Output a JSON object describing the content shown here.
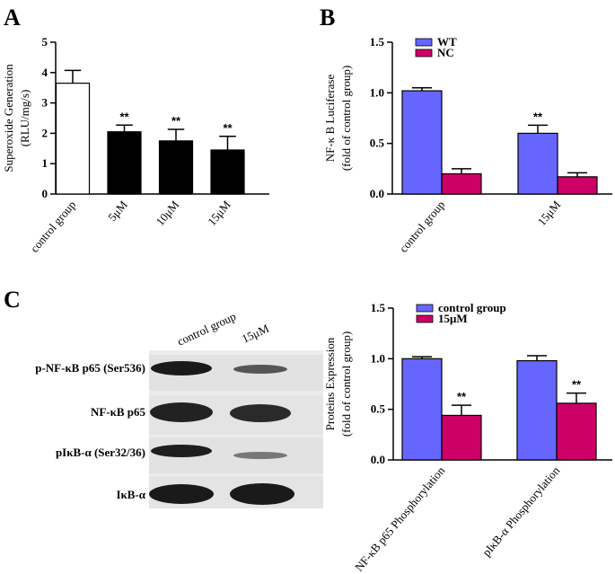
{
  "chart_data": [
    {
      "type": "bar",
      "panel": "A",
      "ylabel": [
        "Superoxide Generation",
        "(RLU/mg/s)"
      ],
      "categories": [
        "control group",
        "5μM",
        "10μM",
        "15μM"
      ],
      "values": [
        3.65,
        2.05,
        1.75,
        1.45
      ],
      "errors": [
        0.42,
        0.22,
        0.38,
        0.45
      ],
      "colors": [
        "#ffffff",
        "#000000",
        "#000000",
        "#000000"
      ],
      "annotations": [
        null,
        "**",
        "**",
        "**"
      ],
      "ylim": [
        0,
        5
      ],
      "yticks": [
        0,
        1,
        2,
        3,
        4,
        5
      ]
    },
    {
      "type": "bar",
      "panel": "B",
      "ylabel": [
        "NF-κ B Luciferase",
        "(fold of control group)"
      ],
      "categories": [
        "control group",
        "15μM"
      ],
      "series": [
        {
          "name": "WT",
          "color": "#6666ff",
          "values": [
            1.02,
            0.6
          ],
          "errors": [
            0.03,
            0.08
          ],
          "annotations": [
            null,
            "**"
          ]
        },
        {
          "name": "NC",
          "color": "#cc0066",
          "values": [
            0.2,
            0.17
          ],
          "errors": [
            0.05,
            0.04
          ],
          "annotations": [
            null,
            null
          ]
        }
      ],
      "ylim": [
        0,
        1.5
      ],
      "yticks": [
        {
          "value": 0,
          "label": "0.0"
        },
        {
          "value": 0.5,
          "label": "0.5"
        },
        {
          "value": 1,
          "label": "1.0"
        },
        {
          "value": 1.5,
          "label": "1.5"
        }
      ],
      "legend": "upper left"
    },
    {
      "type": "bar",
      "ylabel": [
        "Proteins Expression",
        "(fold of control group)"
      ],
      "categories": [
        "NF-κB p65 Phosphorylation",
        "pIκB-α Phosphorylation"
      ],
      "series": [
        {
          "name": "control group",
          "color": "#6666ff",
          "values": [
            1.0,
            0.98
          ],
          "errors": [
            0.02,
            0.05
          ],
          "annotations": [
            null,
            null
          ]
        },
        {
          "name": "15μM",
          "color": "#cc0066",
          "values": [
            0.44,
            0.56
          ],
          "errors": [
            0.1,
            0.1
          ],
          "annotations": [
            "**",
            "**"
          ]
        }
      ],
      "ylim": [
        0,
        1.5
      ],
      "yticks": [
        {
          "value": 0,
          "label": "0.0"
        },
        {
          "value": 0.5,
          "label": "0.5"
        },
        {
          "value": 1,
          "label": "1.0"
        },
        {
          "value": 1.5,
          "label": "1.5"
        }
      ],
      "legend": "upper left"
    }
  ],
  "blot": {
    "panel": "C",
    "columns": [
      "control group",
      "15μM"
    ],
    "rows": [
      "p-NF-κB p65 (Ser536)",
      "NF-κB p65",
      "pIκB-α (Ser32/36)",
      "IκB-α"
    ]
  }
}
